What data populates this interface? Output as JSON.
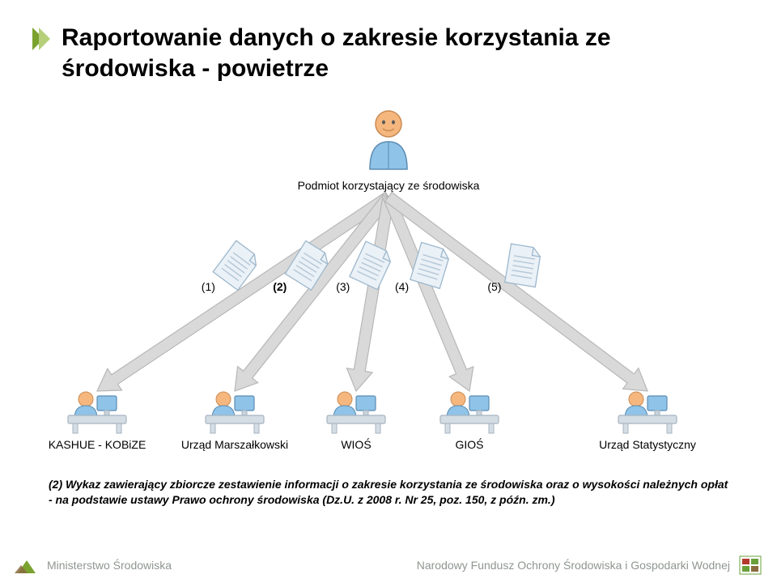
{
  "title": "Raportowanie danych o zakresie korzystania ze środowiska - powietrze",
  "diagram": {
    "type": "flowchart",
    "background": "#ffffff",
    "accent_arrow": "#7aa22f",
    "source": {
      "label": "Podmiot korzystający ze środowiska",
      "icon_head": "#f6b77e",
      "icon_body": "#8fc3e8",
      "icon_stroke": "#5c8db3"
    },
    "doc_icon": {
      "fill": "#eaf1f7",
      "stroke": "#9db7cc",
      "line": "#b7c9d8"
    },
    "arrow": {
      "stroke": "#b7b7b7",
      "fill": "#d9d9d9"
    },
    "numbers": [
      {
        "text": "(1)",
        "bold": false
      },
      {
        "text": "(2)",
        "bold": true
      },
      {
        "text": "(3)",
        "bold": false
      },
      {
        "text": "(4)",
        "bold": false
      },
      {
        "text": "(5)",
        "bold": false
      }
    ],
    "destinations": [
      {
        "label": "KASHUE - KOBiZE"
      },
      {
        "label": "Urząd Marszałkowski"
      },
      {
        "label": "WIOŚ"
      },
      {
        "label": "GIOŚ"
      },
      {
        "label": "Urząd Statystyczny"
      }
    ],
    "desk_colors": {
      "desk": "#d5dde4",
      "desk_stroke": "#a6b4c0",
      "screen": "#8fc3e8",
      "screen_stroke": "#5c8db3",
      "person_head": "#f6b77e",
      "person_body": "#8fc3e8"
    }
  },
  "caption": {
    "main": "(2) Wykaz zawierający zbiorcze zestawienie informacji o zakresie korzystania ze środowiska oraz o wysokości należnych opłat - na podstawie ustawy Prawo ochrony środowiska (Dz.U. z 2008 r. Nr 25, poz. 150, z późn. zm.)"
  },
  "footer": {
    "left": "Ministerstwo Środowiska",
    "right": "Narodowy Fundusz Ochrony Środowiska i Gospodarki Wodnej",
    "logo_green": "#7aa22f",
    "logo_brown": "#8a6b3f",
    "nf_red": "#b43a2e",
    "nf_green": "#6aa03a",
    "text_color": "#8f9690"
  }
}
